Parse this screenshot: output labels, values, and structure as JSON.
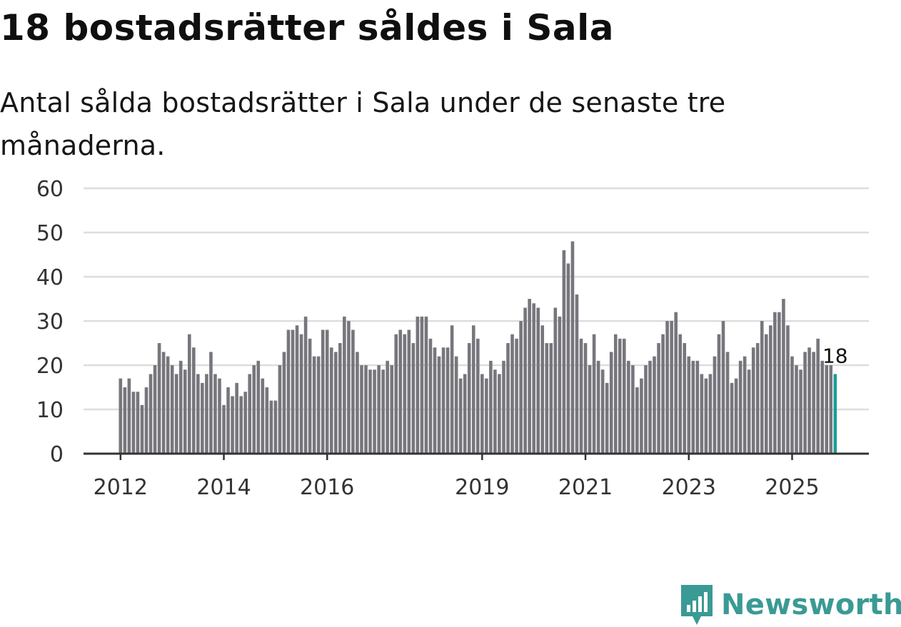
{
  "title": "18 bostadsrätter såldes i Sala",
  "subtitle": "Antal sålda bostadsrätter i Sala under de senaste tre månaderna.",
  "brand": {
    "name": "Newsworthy",
    "icon": "bar-chart-logo-icon"
  },
  "colors": {
    "bar": "#76767c",
    "highlight": "#1a9e99",
    "grid": "#dddddd",
    "axis": "#333333",
    "brand": "#3a9a94"
  },
  "chart_data": {
    "type": "bar",
    "title": "18 bostadsrätter såldes i Sala",
    "xlabel": "",
    "ylabel": "",
    "ylim": [
      0,
      60
    ],
    "y_ticks": [
      0,
      10,
      20,
      30,
      40,
      50,
      60
    ],
    "x_tick_labels": [
      {
        "label": "2012",
        "index": 0
      },
      {
        "label": "2014",
        "index": 24
      },
      {
        "label": "2016",
        "index": 48
      },
      {
        "label": "2019",
        "index": 84
      },
      {
        "label": "2021",
        "index": 108
      },
      {
        "label": "2023",
        "index": 132
      },
      {
        "label": "2025",
        "index": 156
      }
    ],
    "series": [
      {
        "name": "Antal sålda bostadsrätter",
        "start": "2012-01",
        "values": [
          17,
          15,
          17,
          14,
          14,
          11,
          15,
          18,
          20,
          25,
          23,
          22,
          20,
          18,
          21,
          19,
          27,
          24,
          18,
          16,
          18,
          23,
          18,
          17,
          11,
          15,
          13,
          16,
          13,
          14,
          18,
          20,
          21,
          17,
          15,
          12,
          12,
          20,
          23,
          28,
          28,
          29,
          27,
          31,
          26,
          22,
          22,
          28,
          28,
          24,
          23,
          25,
          31,
          30,
          28,
          23,
          20,
          20,
          19,
          19,
          20,
          19,
          21,
          20,
          27,
          28,
          27,
          28,
          25,
          31,
          31,
          31,
          26,
          24,
          22,
          24,
          24,
          29,
          22,
          17,
          18,
          25,
          29,
          26,
          18,
          17,
          21,
          19,
          18,
          21,
          25,
          27,
          26,
          30,
          33,
          35,
          34,
          33,
          29,
          25,
          25,
          33,
          31,
          46,
          43,
          48,
          36,
          26,
          25,
          20,
          27,
          21,
          19,
          16,
          23,
          27,
          26,
          26,
          21,
          20,
          15,
          17,
          20,
          21,
          22,
          25,
          27,
          30,
          30,
          32,
          27,
          25,
          22,
          21,
          21,
          18,
          17,
          18,
          22,
          27,
          30,
          23,
          16,
          17,
          21,
          22,
          19,
          24,
          25,
          30,
          27,
          29,
          32,
          32,
          35,
          29,
          22,
          20,
          19,
          23,
          24,
          23,
          26,
          21,
          20,
          20,
          18
        ]
      }
    ],
    "highlight": {
      "index": 166,
      "label": "18"
    }
  }
}
